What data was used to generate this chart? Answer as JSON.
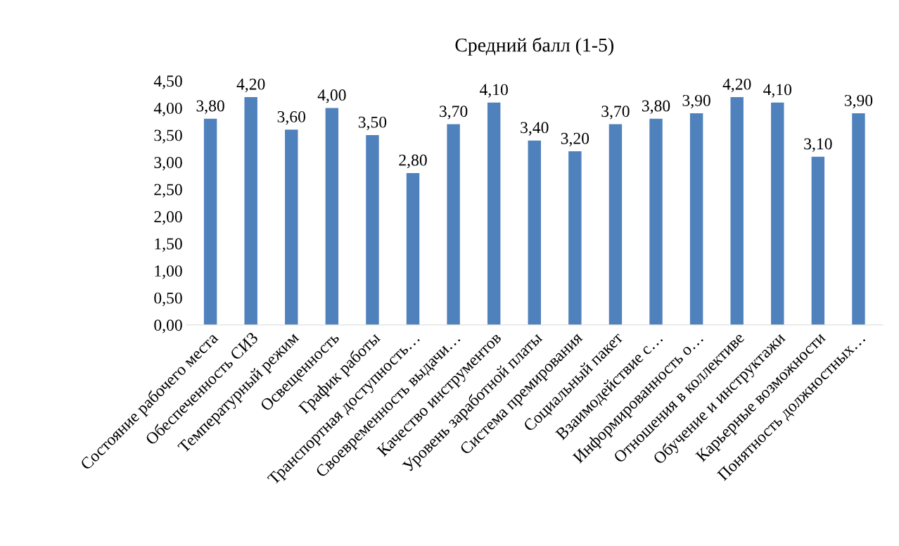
{
  "chart_data": {
    "type": "bar",
    "title": "Средний балл (1-5)",
    "categories": [
      "Состояние рабочего места",
      "Обеспеченность СИЗ",
      "Температурный режим",
      "Освещенность",
      "График работы",
      "Транспортная доступность…",
      "Своевременность выдачи…",
      "Качество инструментов",
      "Уровень заработной платы",
      "Система премирования",
      "Социальный пакет",
      "Взаимодействие с…",
      "Информированность о…",
      "Отношения в коллективе",
      "Обучение и инструктажи",
      "Карьерные возможности",
      "Понятность должностных…"
    ],
    "values": [
      3.8,
      4.2,
      3.6,
      4.0,
      3.5,
      2.8,
      3.7,
      4.1,
      3.4,
      3.2,
      3.7,
      3.8,
      3.9,
      4.2,
      4.1,
      3.1,
      3.9
    ],
    "value_labels": [
      "3,80",
      "4,20",
      "3,60",
      "4,00",
      "3,50",
      "2,80",
      "3,70",
      "4,10",
      "3,40",
      "3,20",
      "3,70",
      "3,80",
      "3,90",
      "4,20",
      "4,10",
      "3,10",
      "3,90"
    ],
    "color": "#4f81bd",
    "ylim": [
      0,
      4.5
    ],
    "yticks": [
      {
        "value": 0,
        "label": "0,00"
      },
      {
        "value": 0.5,
        "label": "0,50"
      },
      {
        "value": 1,
        "label": "1,00"
      },
      {
        "value": 1.5,
        "label": "1,50"
      },
      {
        "value": 2,
        "label": "2,00"
      },
      {
        "value": 2.5,
        "label": "2,50"
      },
      {
        "value": 3,
        "label": "3,00"
      },
      {
        "value": 3.5,
        "label": "3,50"
      },
      {
        "value": 4,
        "label": "4,00"
      },
      {
        "value": 4.5,
        "label": "4,50"
      }
    ],
    "grid": false
  }
}
